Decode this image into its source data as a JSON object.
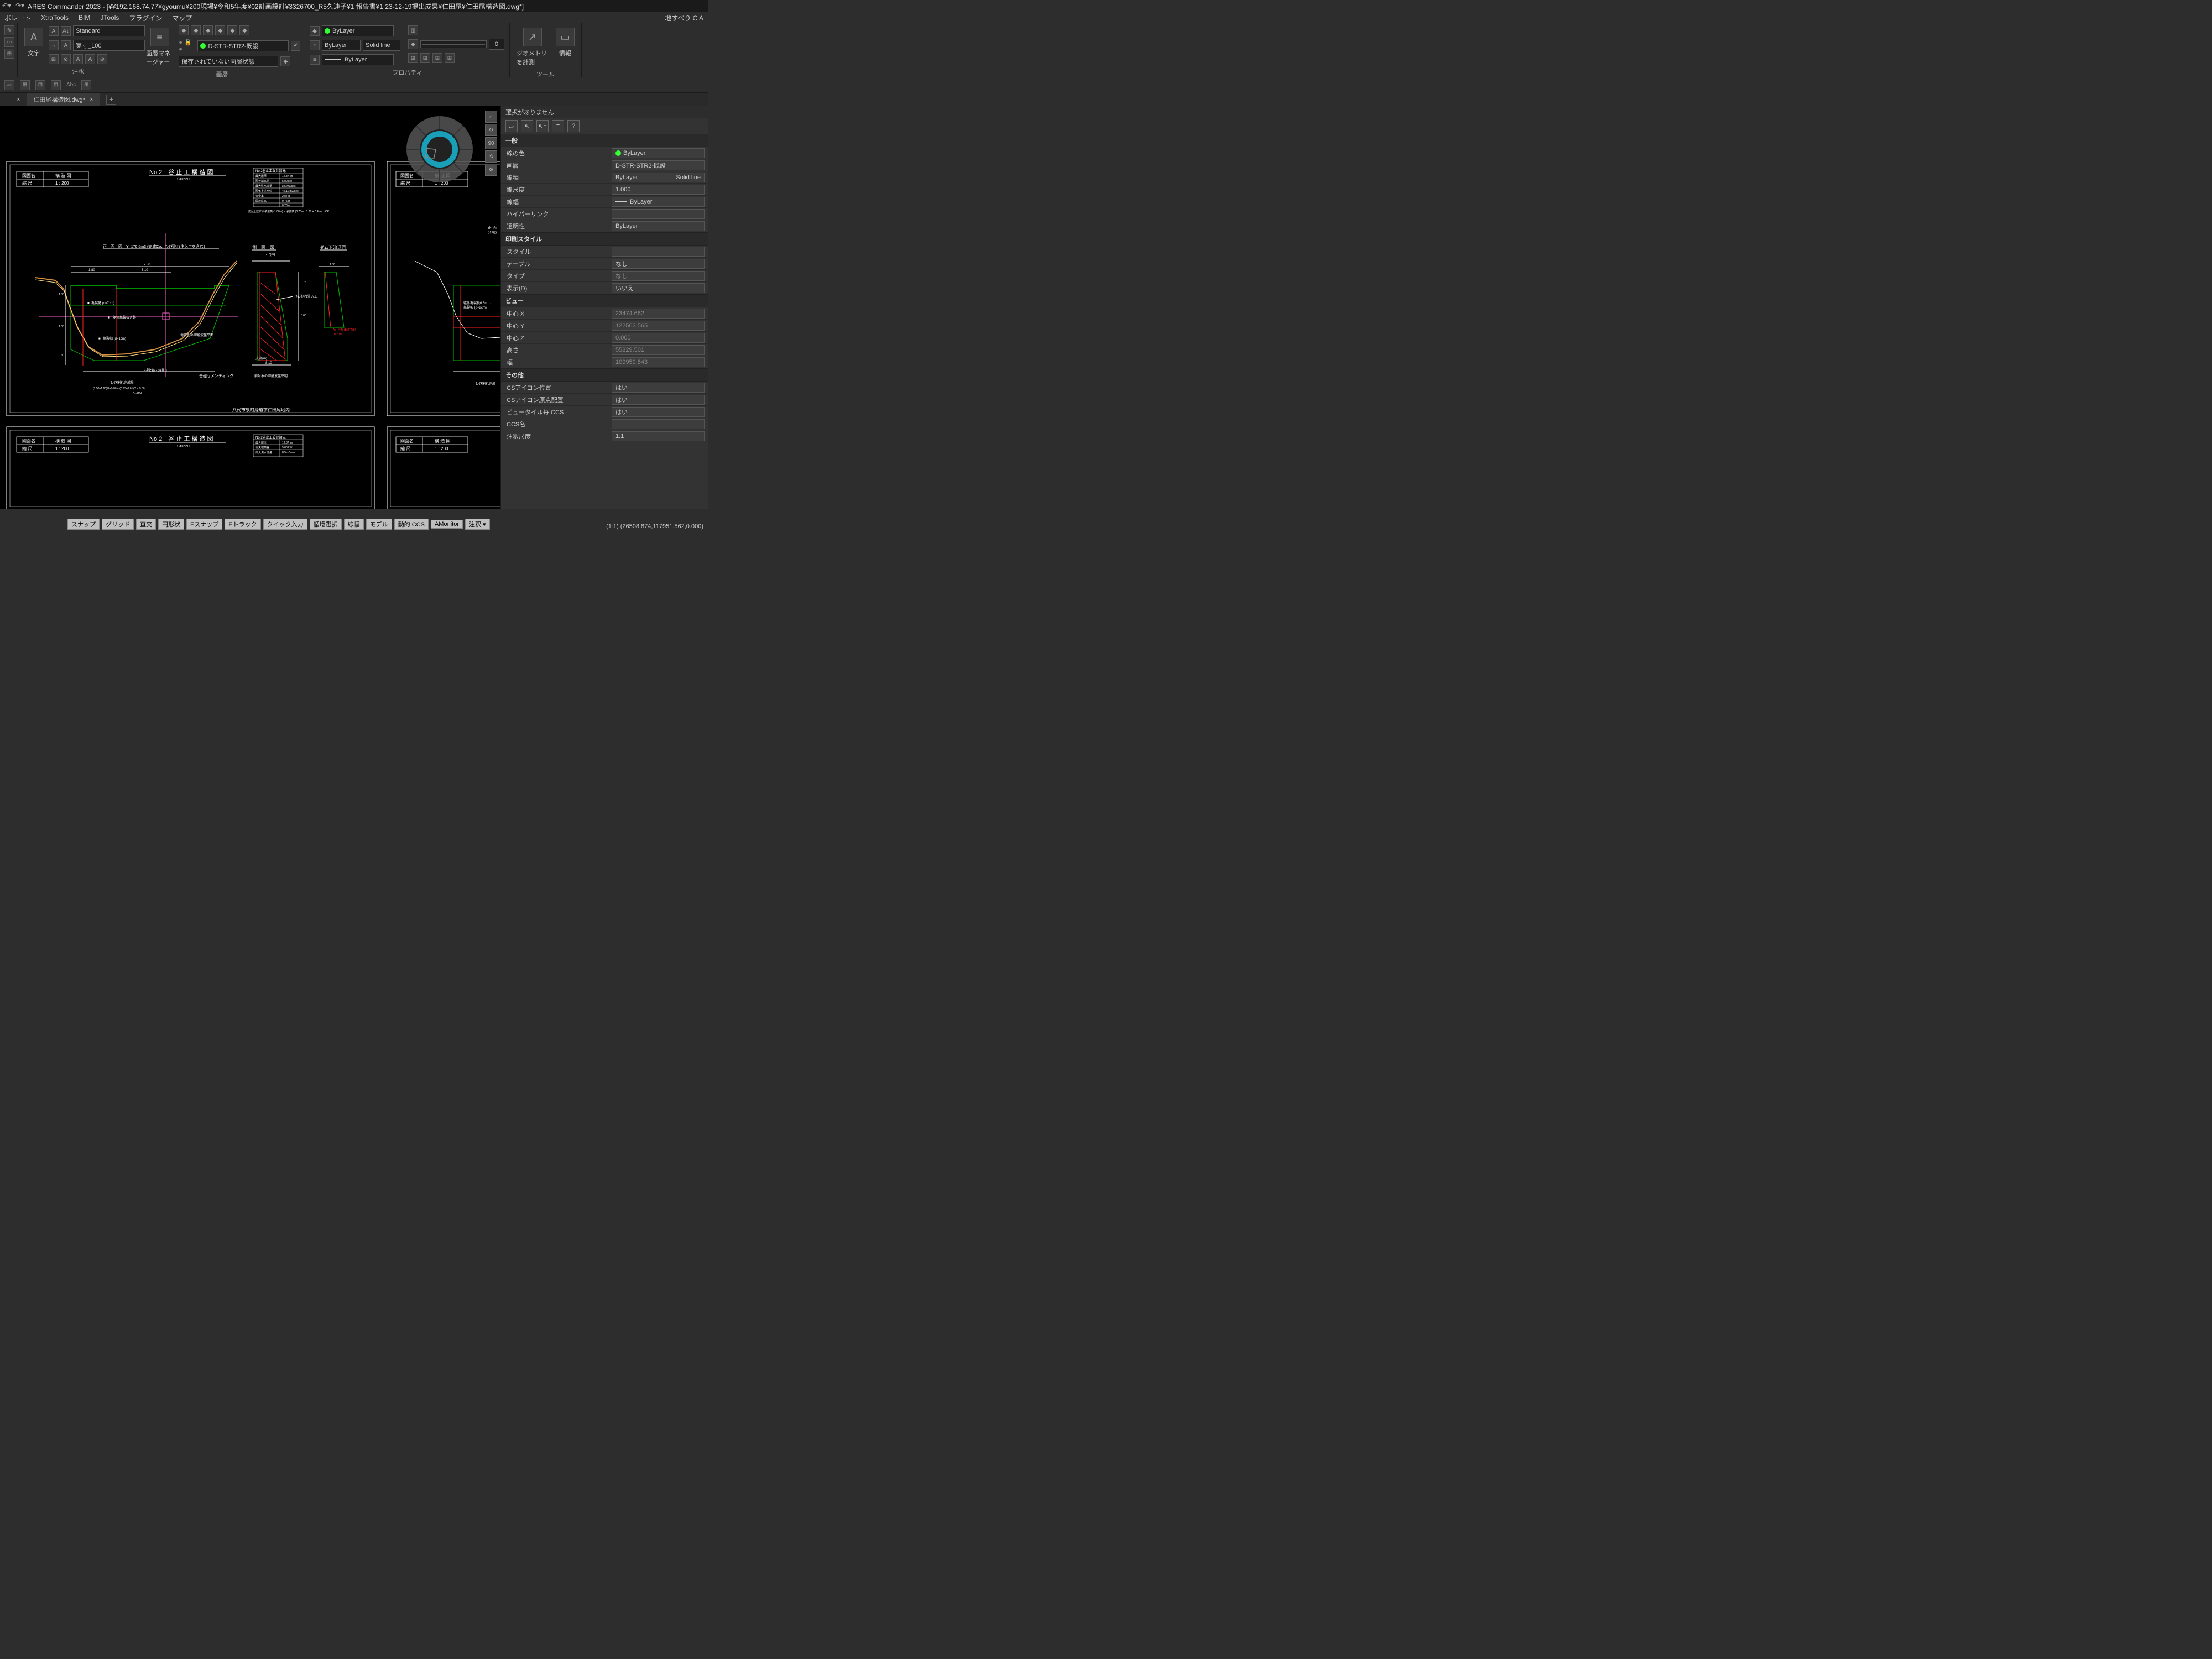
{
  "app": {
    "title": "ARES Commander 2023 - [¥¥192.168.74.77¥gyoumu¥200現場¥令和5年度¥02計画設計¥3326700_R5久連子¥1 報告書¥1 23-12-19提出成果¥仁田尾¥仁田尾構造図.dwg*]",
    "right_status": "地すべり C A"
  },
  "menu": [
    "ボレート",
    "XtraTools",
    "BIM",
    "JTools",
    "プラグイン",
    "マップ"
  ],
  "ribbon": {
    "groups": {
      "annot": {
        "label": "注釈",
        "text_btn": "文字",
        "style1": "Standard",
        "style2": "実寸_100"
      },
      "layers": {
        "label": "画層",
        "mgr": "画層マネージャー",
        "active": "D-STR-STR2-既設",
        "state": "保存されていない画層状態"
      },
      "props": {
        "label": "プロパティ",
        "color": "ByLayer",
        "ltype_by": "ByLayer",
        "ltype": "Solid line",
        "lweight_by": "ByLayer",
        "lweight_val": "0"
      },
      "tools": {
        "label": "ツール",
        "geom": "ジオメトリを計測",
        "info": "情報"
      }
    }
  },
  "tabs": {
    "tab1_name": "仁田尾構造図.dwg*",
    "tab1_close": "×"
  },
  "side_btns": [
    "⌂",
    "↻",
    "90",
    "⟲",
    "⚙"
  ],
  "drawing": {
    "bg": "#000000",
    "frame": "#ffffff",
    "cross": "#00a000",
    "pink": "#ff66cc",
    "red": "#ff2020",
    "terrain": "#d49040",
    "existing": "#00c000",
    "text": "#ffffff",
    "title_box": {
      "drawing_label": "図面名",
      "title": "構 造 図",
      "scale_label": "縮 尺",
      "scale": "1 : 200"
    },
    "main_title": "No.2　谷 止 工 構 造 図",
    "sub_title": "S=1:200",
    "title_box_r": {
      "drawing_label": "図面名",
      "title": "構 造 図",
      "scale_label": "縮 尺",
      "scale": "1 : 200"
    },
    "section_front": "正　面　図",
    "section_side": "側　面　図",
    "section_down": "ダム下流迂回",
    "table_title": "No.2谷止工設計諸元",
    "table_rows": [
      [
        "最大層厚",
        "12.87 ㎞"
      ],
      [
        "現天端高差",
        "5.00 kW"
      ],
      [
        "最大洪水流量",
        "8.5 m3/sec"
      ],
      [
        "現気上洪水位",
        "42.11 m3/sec"
      ],
      [
        "安全率",
        "2.87 d"
      ],
      [
        "開放底高",
        "0.75 m"
      ],
      [
        "",
        "0.70 m"
      ]
    ],
    "table_foot": "流況上放す原子液高 (1.00m) > 必要高 (0.70m : 0.26 + 0.4m)   →OK",
    "front_header": "正　面　図　Y=176.6m3 (完成Co、ひび割れ注入工を含む)",
    "labels": {
      "l1": "亀裂幅 (d=7cm)",
      "l2": "躯体亀裂抜き跡",
      "l3": "亀裂幅 (d=1cm)",
      "l4": "接続・境界工",
      "l5": "基礎セメンティング",
      "l6": "ひび割れ完成量",
      "l7": "(1.50+1.60)/2×9.00 = (0.93+0.61)/2 × 9.00",
      "l8": "=1.3m3",
      "l9": "地質別の岬解波盤平面",
      "l10": "前対象の岬解波盤不明",
      "l11": "ひび割れ注入工",
      "l12": "支流(m)",
      "l13": "躯体亀裂長6.5m →",
      "l14": "亀裂幅 (d=2cm)",
      "l15": "ひび割れ完成",
      "l16": "正 面",
      "l17": "(不明)",
      "r1": "A：台形 (鋼B寸法)",
      "r2": "0.20m"
    },
    "dims": [
      "1.80",
      "7.80",
      "8.10",
      "5.10",
      "1.00",
      "1.50",
      "0.60",
      "1.50",
      "7.7(m)",
      "0.75",
      "5.00",
      "8.10"
    ],
    "foot_text": "八代市泉町縁道字仁田尾地内",
    "main_title2": "No.2　谷 止 工 構 造 図",
    "sub_title2": "S=1:200",
    "table2_rows": [
      [
        "最大層厚",
        "12.87 ㎞"
      ],
      [
        "現天端高差",
        "5.00 kW"
      ],
      [
        "最大洪水流量",
        "8.5 m3/sec"
      ],
      [
        "現気上洪水位",
        "42.11 m3/sec"
      ]
    ]
  },
  "props": {
    "none_sel": "選択がありません",
    "help": "?",
    "sections": {
      "general": {
        "title": "一般",
        "rows": [
          {
            "k": "線の色",
            "v": "ByLayer",
            "dot": "#33ff33"
          },
          {
            "k": "画層",
            "v": "D-STR-STR2-既設"
          },
          {
            "k": "線種",
            "v": "ByLayer",
            "v2": "Solid line"
          },
          {
            "k": "線尺度",
            "v": "1.000"
          },
          {
            "k": "線幅",
            "v": "ByLayer",
            "swatch": true
          },
          {
            "k": "ハイパーリンク",
            "v": ""
          },
          {
            "k": "透明性",
            "v": "ByLayer"
          }
        ]
      },
      "print": {
        "title": "印刷スタイル",
        "rows": [
          {
            "k": "スタイル",
            "v": ""
          },
          {
            "k": "テーブル",
            "v": "なし"
          },
          {
            "k": "タイプ",
            "v": "なし",
            "ro": true
          },
          {
            "k": "表示(D)",
            "v": "いいえ"
          }
        ]
      },
      "view": {
        "title": "ビュー",
        "rows": [
          {
            "k": "中心 X",
            "v": "23474.662",
            "ro": true
          },
          {
            "k": "中心 Y",
            "v": "122563.565",
            "ro": true
          },
          {
            "k": "中心 Z",
            "v": "0.000",
            "ro": true
          },
          {
            "k": "高さ",
            "v": "55829.501",
            "ro": true
          },
          {
            "k": "幅",
            "v": "109959.843",
            "ro": true
          }
        ]
      },
      "other": {
        "title": "その他",
        "rows": [
          {
            "k": "CSアイコン位置",
            "v": "はい"
          },
          {
            "k": "CSアイコン原点配置",
            "v": "はい"
          },
          {
            "k": "ビュータイル毎 CCS",
            "v": "はい"
          },
          {
            "k": "CCS名",
            "v": ""
          },
          {
            "k": "注釈尺度",
            "v": "1:1"
          }
        ]
      }
    }
  },
  "status": {
    "buttons": [
      "スナップ",
      "グリッド",
      "直交",
      "円形状",
      "Eスナップ",
      "Eトラック",
      "クイック入力",
      "循環選択",
      "線幅",
      "モデル",
      "動的 CCS",
      "AMonitor",
      "注釈 ▾"
    ],
    "coords": "(1:1)  (26508.874,117951.562,0.000)"
  }
}
